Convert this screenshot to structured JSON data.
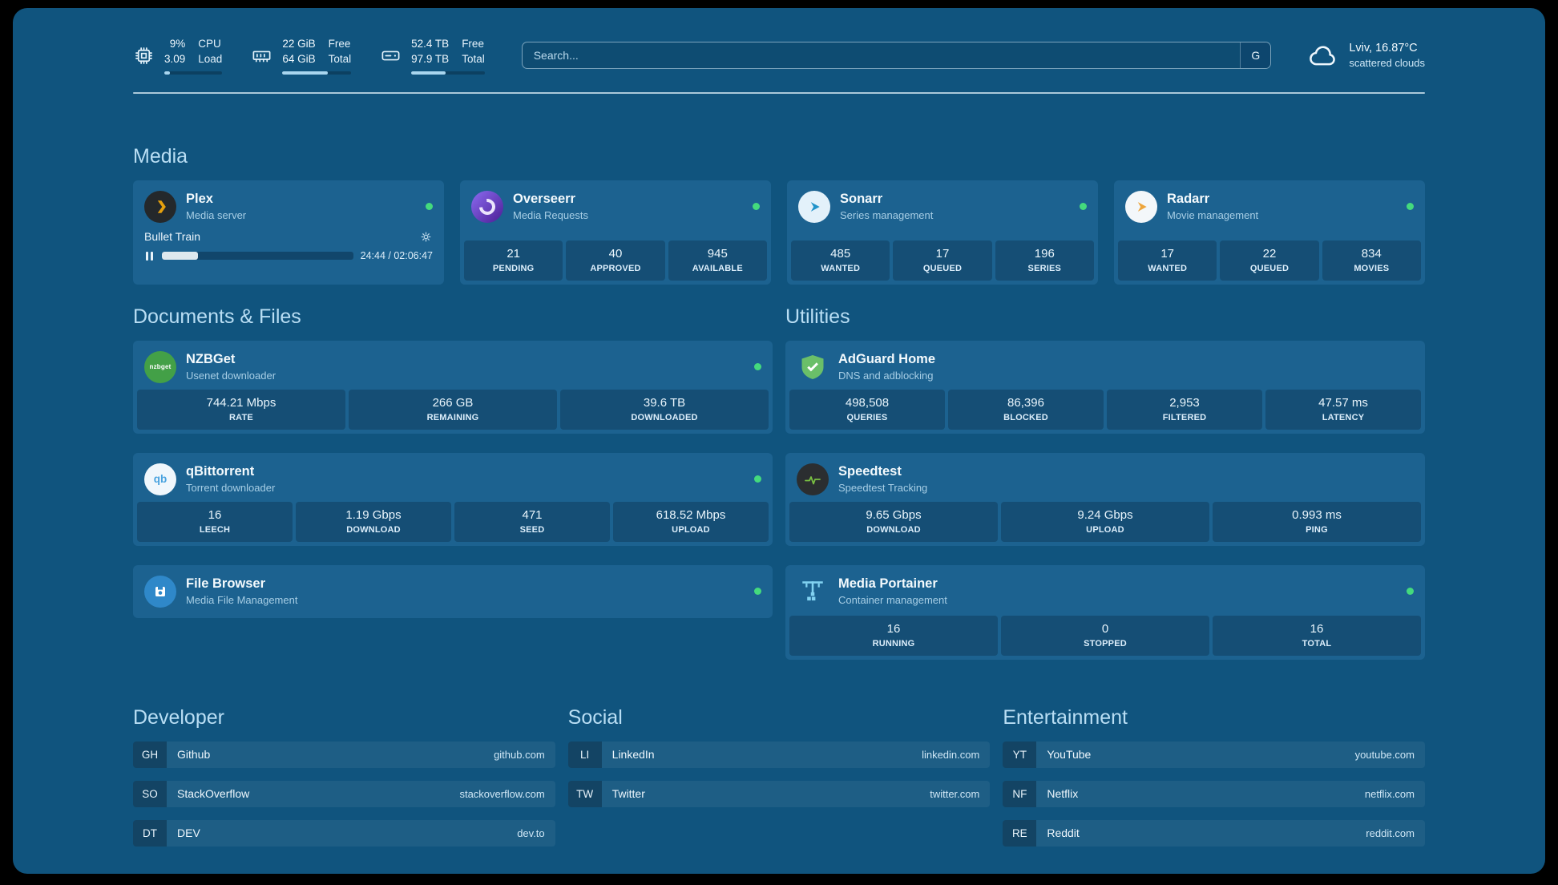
{
  "topbar": {
    "cpu": {
      "value": "9%",
      "sub": "3.09",
      "label_top": "CPU",
      "label_bottom": "Load",
      "percent": 9
    },
    "ram": {
      "value": "22 GiB",
      "sub": "64 GiB",
      "label_top": "Free",
      "label_bottom": "Total",
      "percent": 66
    },
    "disk": {
      "value": "52.4 TB",
      "sub": "97.9 TB",
      "label_top": "Free",
      "label_bottom": "Total",
      "percent": 47
    },
    "search": {
      "placeholder": "Search...",
      "button_label": "G"
    },
    "weather": {
      "location": "Lviv, 16.87°C",
      "condition": "scattered clouds"
    }
  },
  "media": {
    "title": "Media",
    "plex": {
      "name": "Plex",
      "subtitle": "Media server",
      "now_playing": "Bullet Train",
      "time": "24:44 / 02:06:47",
      "progress_percent": 19
    },
    "overseerr": {
      "name": "Overseerr",
      "subtitle": "Media Requests",
      "stats": [
        {
          "value": "21",
          "label": "PENDING"
        },
        {
          "value": "40",
          "label": "APPROVED"
        },
        {
          "value": "945",
          "label": "AVAILABLE"
        }
      ]
    },
    "sonarr": {
      "name": "Sonarr",
      "subtitle": "Series management",
      "stats": [
        {
          "value": "485",
          "label": "WANTED"
        },
        {
          "value": "17",
          "label": "QUEUED"
        },
        {
          "value": "196",
          "label": "SERIES"
        }
      ]
    },
    "radarr": {
      "name": "Radarr",
      "subtitle": "Movie management",
      "stats": [
        {
          "value": "17",
          "label": "WANTED"
        },
        {
          "value": "22",
          "label": "QUEUED"
        },
        {
          "value": "834",
          "label": "MOVIES"
        }
      ]
    }
  },
  "documents": {
    "title": "Documents & Files",
    "nzbget": {
      "name": "NZBGet",
      "subtitle": "Usenet downloader",
      "stats": [
        {
          "value": "744.21 Mbps",
          "label": "RATE"
        },
        {
          "value": "266 GB",
          "label": "REMAINING"
        },
        {
          "value": "39.6 TB",
          "label": "DOWNLOADED"
        }
      ]
    },
    "qbittorrent": {
      "name": "qBittorrent",
      "subtitle": "Torrent downloader",
      "stats": [
        {
          "value": "16",
          "label": "LEECH"
        },
        {
          "value": "1.19 Gbps",
          "label": "DOWNLOAD"
        },
        {
          "value": "471",
          "label": "SEED"
        },
        {
          "value": "618.52 Mbps",
          "label": "UPLOAD"
        }
      ]
    },
    "filebrowser": {
      "name": "File Browser",
      "subtitle": "Media File Management"
    }
  },
  "utilities": {
    "title": "Utilities",
    "adguard": {
      "name": "AdGuard Home",
      "subtitle": "DNS and adblocking",
      "stats": [
        {
          "value": "498,508",
          "label": "QUERIES"
        },
        {
          "value": "86,396",
          "label": "BLOCKED"
        },
        {
          "value": "2,953",
          "label": "FILTERED"
        },
        {
          "value": "47.57 ms",
          "label": "LATENCY"
        }
      ]
    },
    "speedtest": {
      "name": "Speedtest",
      "subtitle": "Speedtest Tracking",
      "stats": [
        {
          "value": "9.65 Gbps",
          "label": "DOWNLOAD"
        },
        {
          "value": "9.24 Gbps",
          "label": "UPLOAD"
        },
        {
          "value": "0.993 ms",
          "label": "PING"
        }
      ]
    },
    "portainer": {
      "name": "Media Portainer",
      "subtitle": "Container management",
      "stats": [
        {
          "value": "16",
          "label": "RUNNING"
        },
        {
          "value": "0",
          "label": "STOPPED"
        },
        {
          "value": "16",
          "label": "TOTAL"
        }
      ]
    }
  },
  "bookmarks": {
    "developer": {
      "title": "Developer",
      "links": [
        {
          "abbr": "GH",
          "name": "Github",
          "url": "github.com"
        },
        {
          "abbr": "SO",
          "name": "StackOverflow",
          "url": "stackoverflow.com"
        },
        {
          "abbr": "DT",
          "name": "DEV",
          "url": "dev.to"
        }
      ]
    },
    "social": {
      "title": "Social",
      "links": [
        {
          "abbr": "LI",
          "name": "LinkedIn",
          "url": "linkedin.com"
        },
        {
          "abbr": "TW",
          "name": "Twitter",
          "url": "twitter.com"
        }
      ]
    },
    "entertainment": {
      "title": "Entertainment",
      "links": [
        {
          "abbr": "YT",
          "name": "YouTube",
          "url": "youtube.com"
        },
        {
          "abbr": "NF",
          "name": "Netflix",
          "url": "netflix.com"
        },
        {
          "abbr": "RE",
          "name": "Reddit",
          "url": "reddit.com"
        }
      ]
    }
  },
  "icons": {
    "qbittorrent_glyph": "qb",
    "nzbget_glyph": "nzbget"
  },
  "colors": {
    "background": "#10547e",
    "card": "#1c6290",
    "stat_box": "#0f4a72",
    "status_green": "#44da7d",
    "section_title": "#b9def4"
  }
}
